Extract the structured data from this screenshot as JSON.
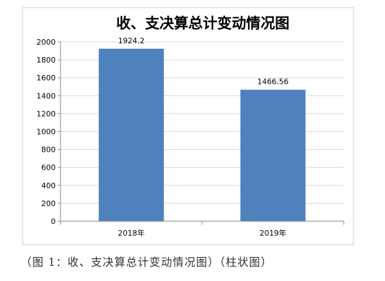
{
  "chart_data": {
    "type": "bar",
    "title": "收、支决算总计变动情况图",
    "categories": [
      "2018年",
      "2019年"
    ],
    "values": [
      1924.2,
      1466.56
    ],
    "data_labels": [
      "1924.2",
      "1466.56"
    ],
    "ylim": [
      0,
      2000
    ],
    "yticks": [
      "0",
      "200",
      "400",
      "600",
      "800",
      "1000",
      "1200",
      "1400",
      "1600",
      "1800",
      "2000"
    ],
    "grid": true,
    "bar_color": "#4f81bd",
    "legend": false
  },
  "caption": "（图 1：收、支决算总计变动情况图）（柱状图）"
}
